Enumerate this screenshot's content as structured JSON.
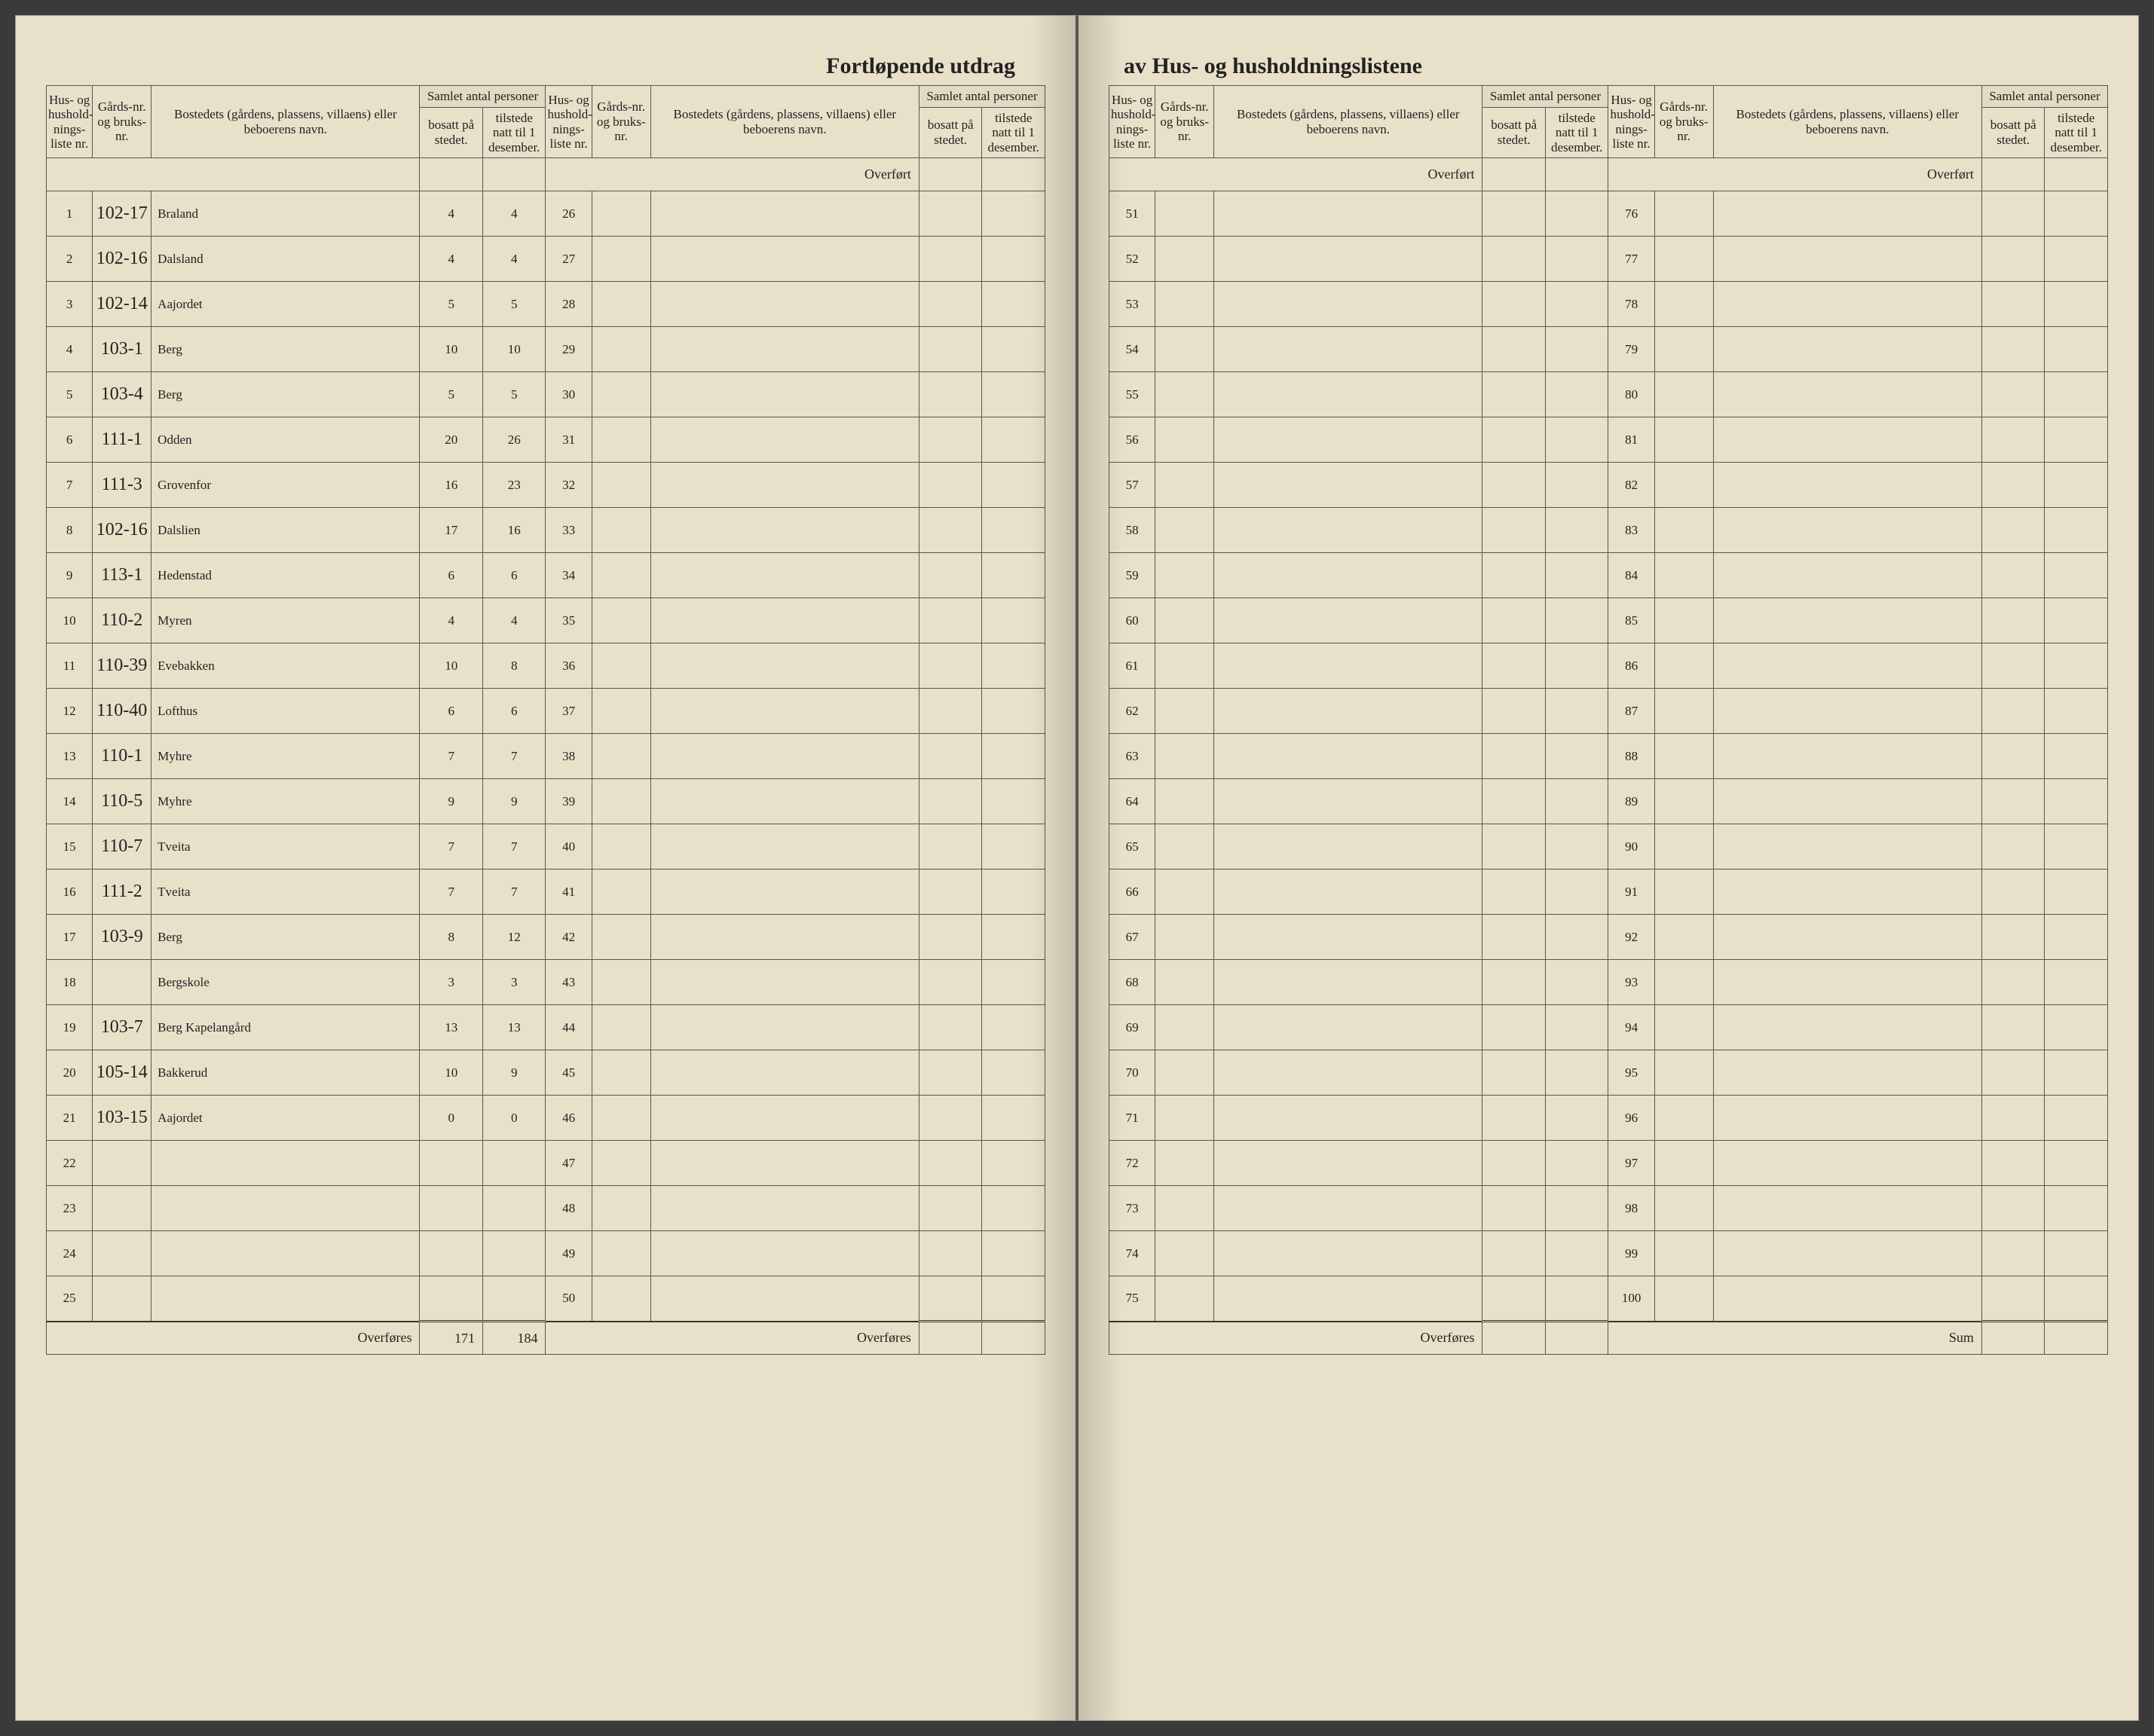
{
  "title_left": "Fortløpende utdrag",
  "title_right": "av Hus- og husholdningslistene",
  "headers": {
    "liste": "Hus- og hushold-nings-liste nr.",
    "gard": "Gårds-nr. og bruks-nr.",
    "name": "Bostedets (gårdens, plassens, villaens) eller beboerens navn.",
    "group": "Samlet antal personer",
    "bosatt": "bosatt på stedet.",
    "tilstede": "tilstede natt til 1 desember."
  },
  "overfort_label": "Overført",
  "overfores_label": "Overføres",
  "sum_label": "Sum",
  "footer_totals": {
    "bosatt": "171",
    "tilstede": "184"
  },
  "columns_left_a": [
    {
      "n": "1",
      "gard": "102-17",
      "name": "Braland",
      "b": "4",
      "t": "4"
    },
    {
      "n": "2",
      "gard": "102-16",
      "name": "Dalsland",
      "b": "4",
      "t": "4"
    },
    {
      "n": "3",
      "gard": "102-14",
      "name": "Aajordet",
      "b": "5",
      "t": "5"
    },
    {
      "n": "4",
      "gard": "103-1",
      "name": "Berg",
      "b": "10",
      "t": "10"
    },
    {
      "n": "5",
      "gard": "103-4",
      "name": "Berg",
      "b": "5",
      "t": "5"
    },
    {
      "n": "6",
      "gard": "111-1",
      "name": "Odden",
      "b": "20",
      "t": "26"
    },
    {
      "n": "7",
      "gard": "111-3",
      "name": "Grovenfor",
      "b": "16",
      "t": "23"
    },
    {
      "n": "8",
      "gard": "102-16",
      "name": "Dalslien",
      "b": "17",
      "t": "16"
    },
    {
      "n": "9",
      "gard": "113-1",
      "name": "Hedenstad",
      "b": "6",
      "t": "6"
    },
    {
      "n": "10",
      "gard": "110-2",
      "name": "Myren",
      "b": "4",
      "t": "4"
    },
    {
      "n": "11",
      "gard": "110-39",
      "name": "Evebakken",
      "b": "10",
      "t": "8"
    },
    {
      "n": "12",
      "gard": "110-40",
      "name": "Lofthus",
      "b": "6",
      "t": "6"
    },
    {
      "n": "13",
      "gard": "110-1",
      "name": "Myhre",
      "b": "7",
      "t": "7"
    },
    {
      "n": "14",
      "gard": "110-5",
      "name": "Myhre",
      "b": "9",
      "t": "9"
    },
    {
      "n": "15",
      "gard": "110-7",
      "name": "Tveita",
      "b": "7",
      "t": "7"
    },
    {
      "n": "16",
      "gard": "111-2",
      "name": "Tveita",
      "b": "7",
      "t": "7"
    },
    {
      "n": "17",
      "gard": "103-9",
      "name": "Berg",
      "b": "8",
      "t": "12"
    },
    {
      "n": "18",
      "gard": "",
      "name": "Bergskole",
      "b": "3",
      "t": "3"
    },
    {
      "n": "19",
      "gard": "103-7",
      "name": "Berg Kapelangård",
      "b": "13",
      "t": "13"
    },
    {
      "n": "20",
      "gard": "105-14",
      "name": "Bakkerud",
      "b": "10",
      "t": "9"
    },
    {
      "n": "21",
      "gard": "103-15",
      "name": "Aajordet",
      "b": "0",
      "t": "0"
    },
    {
      "n": "22",
      "gard": "",
      "name": "",
      "b": "",
      "t": ""
    },
    {
      "n": "23",
      "gard": "",
      "name": "",
      "b": "",
      "t": ""
    },
    {
      "n": "24",
      "gard": "",
      "name": "",
      "b": "",
      "t": ""
    },
    {
      "n": "25",
      "gard": "",
      "name": "",
      "b": "",
      "t": ""
    }
  ],
  "columns_left_b": [
    26,
    27,
    28,
    29,
    30,
    31,
    32,
    33,
    34,
    35,
    36,
    37,
    38,
    39,
    40,
    41,
    42,
    43,
    44,
    45,
    46,
    47,
    48,
    49,
    50
  ],
  "columns_right_a": [
    51,
    52,
    53,
    54,
    55,
    56,
    57,
    58,
    59,
    60,
    61,
    62,
    63,
    64,
    65,
    66,
    67,
    68,
    69,
    70,
    71,
    72,
    73,
    74,
    75
  ],
  "columns_right_b": [
    76,
    77,
    78,
    79,
    80,
    81,
    82,
    83,
    84,
    85,
    86,
    87,
    88,
    89,
    90,
    91,
    92,
    93,
    94,
    95,
    96,
    97,
    98,
    99,
    100
  ],
  "colors": {
    "paper": "#e8e0c8",
    "ink": "#222222",
    "handwriting": "#1a1a1a",
    "rule": "#555555"
  }
}
